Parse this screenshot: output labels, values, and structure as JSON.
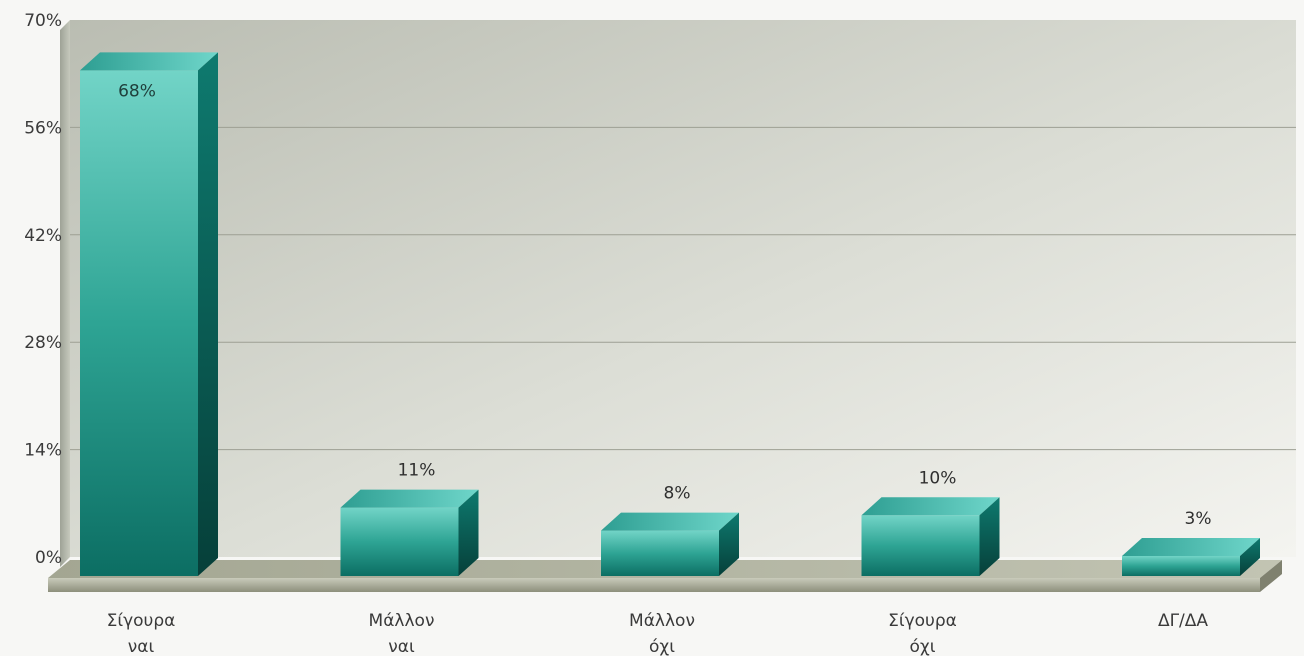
{
  "chart_data": {
    "type": "bar",
    "categories": [
      [
        "Σίγουρα",
        "ναι"
      ],
      [
        "Μάλλον",
        "ναι"
      ],
      [
        "Μάλλον",
        "όχι"
      ],
      [
        "Σίγουρα",
        "όχι"
      ],
      [
        "ΔΓ/ΔΑ"
      ]
    ],
    "values": [
      68,
      11,
      8,
      10,
      3
    ],
    "value_labels": [
      "68%",
      "11%",
      "8%",
      "10%",
      "3%"
    ],
    "y_ticks": [
      "0%",
      "14%",
      "28%",
      "42%",
      "56%",
      "70%"
    ],
    "ylim": [
      0,
      70
    ],
    "title": "",
    "xlabel": "",
    "ylabel": "",
    "grid": true,
    "colors": {
      "bar_front_light": "#6dd1c4",
      "bar_front_dark": "#0f7468",
      "bar_top": "#45b7ab",
      "bar_side": "#0a5a52",
      "plot_bg_left": "#bfc3b7",
      "plot_bg_right": "#f2f2ee",
      "floor": "#a9ab98",
      "grid": "#9d9f93"
    }
  }
}
